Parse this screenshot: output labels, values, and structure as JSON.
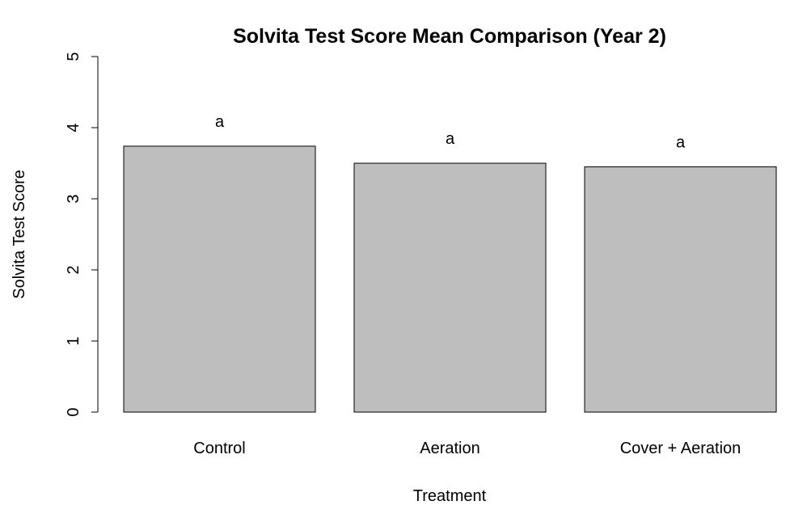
{
  "chart_data": {
    "type": "bar",
    "title": "Solvita Test Score Mean Comparison (Year 2)",
    "xlabel": "Treatment",
    "ylabel": "Solvita Test Score",
    "categories": [
      "Control",
      "Aeration",
      "Cover + Aeration"
    ],
    "values": [
      3.74,
      3.5,
      3.45
    ],
    "bar_labels": [
      "a",
      "a",
      "a"
    ],
    "ylim": [
      0,
      5
    ],
    "yticks": [
      0,
      1,
      2,
      3,
      4,
      5
    ],
    "ytick_labels": [
      "0",
      "1",
      "2",
      "3",
      "4",
      "5"
    ],
    "grid": false,
    "legend": "none",
    "bar_color": "#bebebe",
    "bar_border_color": "#000000"
  }
}
